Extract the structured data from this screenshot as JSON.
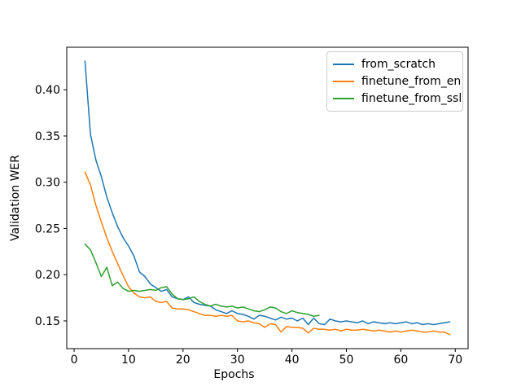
{
  "chart_data": {
    "type": "line",
    "title": "",
    "xlabel": "Epochs",
    "ylabel": "Validation WER",
    "xlim": [
      -1.35,
      72.35
    ],
    "ylim": [
      0.12,
      0.446
    ],
    "grid": false,
    "legend_position": "upper right",
    "x_ticks": {
      "values": [
        0,
        10,
        20,
        30,
        40,
        50,
        60,
        70
      ],
      "labels": [
        "0",
        "10",
        "20",
        "30",
        "40",
        "50",
        "60",
        "70"
      ]
    },
    "y_ticks": {
      "values": [
        0.15,
        0.2,
        0.25,
        0.3,
        0.35,
        0.4
      ],
      "labels": [
        "0.15",
        "0.20",
        "0.25",
        "0.30",
        "0.35",
        "0.40"
      ]
    },
    "series": [
      {
        "name": "from_scratch",
        "color": "#1f77b4",
        "x_start": 2,
        "x_step": 1,
        "values": [
          0.431,
          0.352,
          0.324,
          0.306,
          0.284,
          0.267,
          0.252,
          0.24,
          0.231,
          0.22,
          0.203,
          0.198,
          0.19,
          0.186,
          0.182,
          0.184,
          0.176,
          0.174,
          0.173,
          0.176,
          0.17,
          0.168,
          0.167,
          0.166,
          0.162,
          0.16,
          0.158,
          0.161,
          0.158,
          0.157,
          0.155,
          0.152,
          0.156,
          0.155,
          0.153,
          0.151,
          0.154,
          0.152,
          0.153,
          0.15,
          0.153,
          0.146,
          0.153,
          0.147,
          0.146,
          0.152,
          0.15,
          0.149,
          0.15,
          0.149,
          0.148,
          0.15,
          0.147,
          0.149,
          0.148,
          0.147,
          0.148,
          0.147,
          0.148,
          0.149,
          0.147,
          0.148,
          0.146,
          0.147,
          0.146,
          0.147,
          0.148,
          0.149
        ]
      },
      {
        "name": "finetune_from_en",
        "color": "#ff7f0e",
        "x_start": 2,
        "x_step": 1,
        "values": [
          0.311,
          0.297,
          0.275,
          0.257,
          0.24,
          0.225,
          0.212,
          0.199,
          0.187,
          0.18,
          0.176,
          0.175,
          0.176,
          0.171,
          0.17,
          0.171,
          0.164,
          0.163,
          0.163,
          0.162,
          0.16,
          0.158,
          0.156,
          0.156,
          0.155,
          0.156,
          0.155,
          0.156,
          0.15,
          0.149,
          0.15,
          0.148,
          0.147,
          0.143,
          0.147,
          0.146,
          0.138,
          0.144,
          0.143,
          0.143,
          0.142,
          0.137,
          0.142,
          0.141,
          0.141,
          0.14,
          0.141,
          0.139,
          0.141,
          0.14,
          0.14,
          0.141,
          0.14,
          0.139,
          0.14,
          0.139,
          0.138,
          0.139,
          0.138,
          0.139,
          0.14,
          0.139,
          0.138,
          0.138,
          0.139,
          0.138,
          0.138,
          0.135
        ]
      },
      {
        "name": "finetune_from_ssl",
        "color": "#2ca02c",
        "x_start": 2,
        "x_step": 1,
        "values": [
          0.233,
          0.227,
          0.213,
          0.198,
          0.208,
          0.188,
          0.192,
          0.185,
          0.182,
          0.183,
          0.182,
          0.183,
          0.184,
          0.183,
          0.186,
          0.187,
          0.179,
          0.174,
          0.173,
          0.174,
          0.176,
          0.171,
          0.168,
          0.166,
          0.168,
          0.166,
          0.165,
          0.166,
          0.164,
          0.165,
          0.163,
          0.161,
          0.16,
          0.162,
          0.165,
          0.164,
          0.16,
          0.158,
          0.161,
          0.159,
          0.158,
          0.157,
          0.155,
          0.156
        ]
      }
    ]
  }
}
